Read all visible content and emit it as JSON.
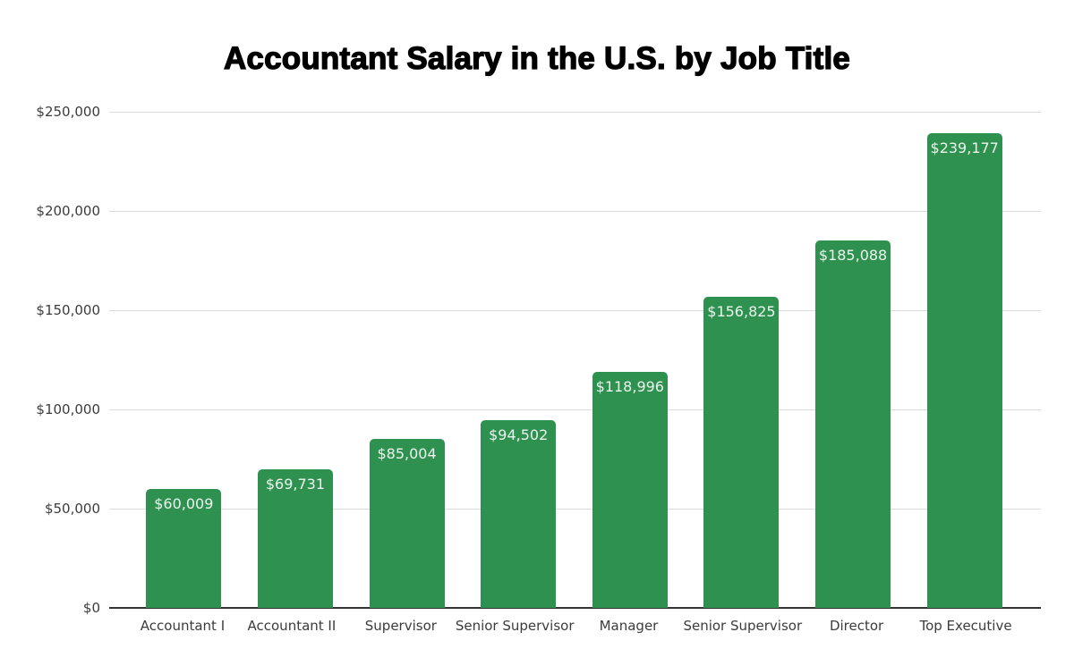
{
  "chart_data": {
    "type": "bar",
    "title": "Accountant Salary in the U.S. by Job Title",
    "xlabel": "",
    "ylabel": "",
    "categories": [
      "Accountant I",
      "Accountant II",
      "Supervisor",
      "Senior Supervisor",
      "Manager",
      "Senior Supervisor",
      "Director",
      "Top Executive"
    ],
    "values": [
      60009,
      69731,
      85004,
      94502,
      118996,
      156825,
      185088,
      239177
    ],
    "value_labels": [
      "$60,009",
      "$69,731",
      "$85,004",
      "$94,502",
      "$118,996",
      "$156,825",
      "$185,088",
      "$239,177"
    ],
    "y_ticks": [
      {
        "label": "$250,000",
        "value": 250000
      },
      {
        "label": "$200,000",
        "value": 200000
      },
      {
        "label": "$150,000",
        "value": 150000
      },
      {
        "label": "$100,000",
        "value": 100000
      },
      {
        "label": "$50,000",
        "value": 50000
      },
      {
        "label": "$0",
        "value": 0
      }
    ],
    "ylim": [
      0,
      250000
    ],
    "grid": true,
    "legend": "none",
    "colors": {
      "bar": "#2E9150",
      "bar_value_text": "#ECF5EE",
      "axis_text": "#3C3C3C",
      "gridline": "#DBDBDB",
      "baseline": "#333333",
      "title_text": "#000000",
      "background": "#FFFFFF"
    }
  }
}
